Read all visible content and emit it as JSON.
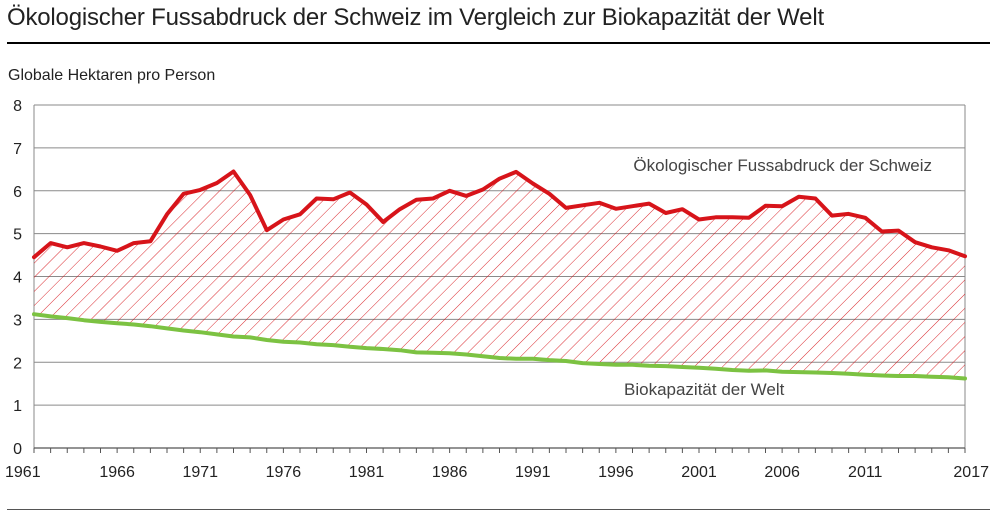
{
  "header": {
    "title": "Ökologischer Fussabdruck der Schweiz im Vergleich zur Biokapazität der Welt"
  },
  "colors": {
    "footprint": "#d7141a",
    "biocapacity": "#7cc242",
    "hatch": "#d7141a",
    "grid": "#8a8a8a",
    "text": "#222222"
  },
  "chart_data": {
    "type": "line",
    "title": "Ökologischer Fussabdruck der Schweiz im Vergleich zur Biokapazität der Welt",
    "ylabel": "Globale Hektaren pro Person",
    "xlabel": "",
    "xlim": [
      1961,
      2017
    ],
    "ylim": [
      0,
      8
    ],
    "yticks": [
      "0",
      "1",
      "2",
      "3",
      "4",
      "5",
      "6",
      "7",
      "8"
    ],
    "xticks": [
      "1961",
      "1966",
      "1971",
      "1976",
      "1981",
      "1986",
      "1991",
      "1996",
      "2001",
      "2006",
      "2011",
      "2017"
    ],
    "grid": true,
    "fill_between": "hatched",
    "x": [
      1961,
      1962,
      1963,
      1964,
      1965,
      1966,
      1967,
      1968,
      1969,
      1970,
      1971,
      1972,
      1973,
      1974,
      1975,
      1976,
      1977,
      1978,
      1979,
      1980,
      1981,
      1982,
      1983,
      1984,
      1985,
      1986,
      1987,
      1988,
      1989,
      1990,
      1991,
      1992,
      1993,
      1994,
      1995,
      1996,
      1997,
      1998,
      1999,
      2000,
      2001,
      2002,
      2003,
      2004,
      2005,
      2006,
      2007,
      2008,
      2009,
      2010,
      2011,
      2012,
      2013,
      2014,
      2015,
      2016,
      2017
    ],
    "series": [
      {
        "name": "Ökologischer Fussabdruck der Schweiz",
        "values": [
          4.45,
          4.78,
          4.68,
          4.78,
          4.7,
          4.6,
          4.78,
          4.82,
          5.45,
          5.93,
          6.02,
          6.18,
          6.45,
          5.9,
          5.08,
          5.33,
          5.45,
          5.82,
          5.8,
          5.96,
          5.68,
          5.27,
          5.57,
          5.79,
          5.82,
          6.0,
          5.88,
          6.03,
          6.28,
          6.44,
          6.17,
          5.93,
          5.6,
          5.66,
          5.72,
          5.58,
          5.64,
          5.7,
          5.48,
          5.57,
          5.33,
          5.38,
          5.38,
          5.37,
          5.65,
          5.64,
          5.86,
          5.82,
          5.42,
          5.46,
          5.37,
          5.05,
          5.07,
          4.8,
          4.68,
          4.61,
          4.47
        ]
      },
      {
        "name": "Biokapazität der Welt",
        "values": [
          3.12,
          3.07,
          3.03,
          2.98,
          2.94,
          2.91,
          2.88,
          2.84,
          2.79,
          2.74,
          2.7,
          2.65,
          2.6,
          2.58,
          2.52,
          2.48,
          2.46,
          2.42,
          2.4,
          2.36,
          2.33,
          2.31,
          2.28,
          2.23,
          2.22,
          2.21,
          2.18,
          2.14,
          2.1,
          2.08,
          2.08,
          2.05,
          2.03,
          1.98,
          1.96,
          1.94,
          1.94,
          1.92,
          1.91,
          1.89,
          1.87,
          1.85,
          1.82,
          1.8,
          1.81,
          1.78,
          1.77,
          1.76,
          1.75,
          1.73,
          1.71,
          1.69,
          1.68,
          1.68,
          1.66,
          1.65,
          1.62
        ]
      }
    ],
    "annotations": [
      "Ökologischer Fussabdruck der Schweiz",
      "Biokapazität der Welt"
    ]
  }
}
